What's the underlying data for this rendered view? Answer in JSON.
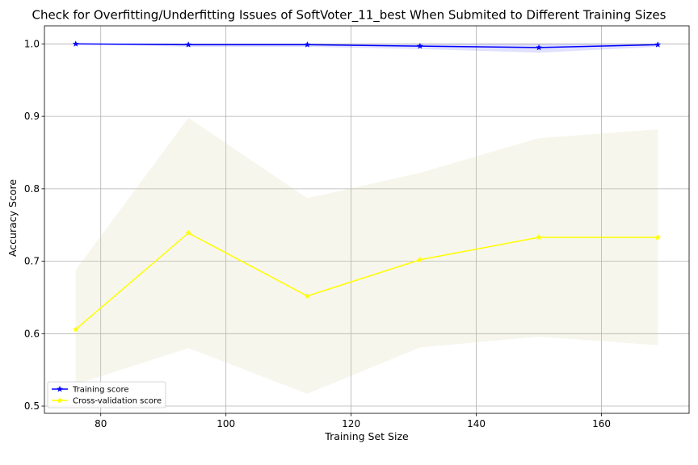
{
  "chart_data": {
    "type": "line",
    "title": "Check for Overfitting/Underfitting Issues of SoftVoter_11_best When Submited to Different Training Sizes",
    "xlabel": "Training Set Size",
    "ylabel": "Accuracy Score",
    "xlim": [
      71,
      174
    ],
    "ylim": [
      0.49,
      1.025
    ],
    "x_ticks": [
      80,
      100,
      120,
      140,
      160
    ],
    "y_ticks": [
      0.5,
      0.6,
      0.7,
      0.8,
      0.9,
      1.0
    ],
    "grid": true,
    "legend_position": "lower-left",
    "x": [
      76,
      94,
      113,
      131,
      150,
      169
    ],
    "series": [
      {
        "name": "Training score",
        "color": "#0000ff",
        "band_color": "#0000ff",
        "marker": "star",
        "values": [
          1.0,
          0.999,
          0.999,
          0.997,
          0.995,
          0.999
        ],
        "band_upper": [
          1.0,
          1.0,
          1.0,
          1.0,
          1.0,
          1.0
        ],
        "band_lower": [
          1.0,
          0.996,
          0.996,
          0.993,
          0.988,
          0.996
        ]
      },
      {
        "name": "Cross-validation score",
        "color": "#ffff00",
        "band_color": "#d4d4a0",
        "marker": "star",
        "values": [
          0.606,
          0.739,
          0.652,
          0.702,
          0.733,
          0.733
        ],
        "band_upper": [
          0.688,
          0.898,
          0.787,
          0.822,
          0.87,
          0.882
        ],
        "band_lower": [
          0.53,
          0.58,
          0.517,
          0.581,
          0.596,
          0.584
        ]
      }
    ]
  }
}
